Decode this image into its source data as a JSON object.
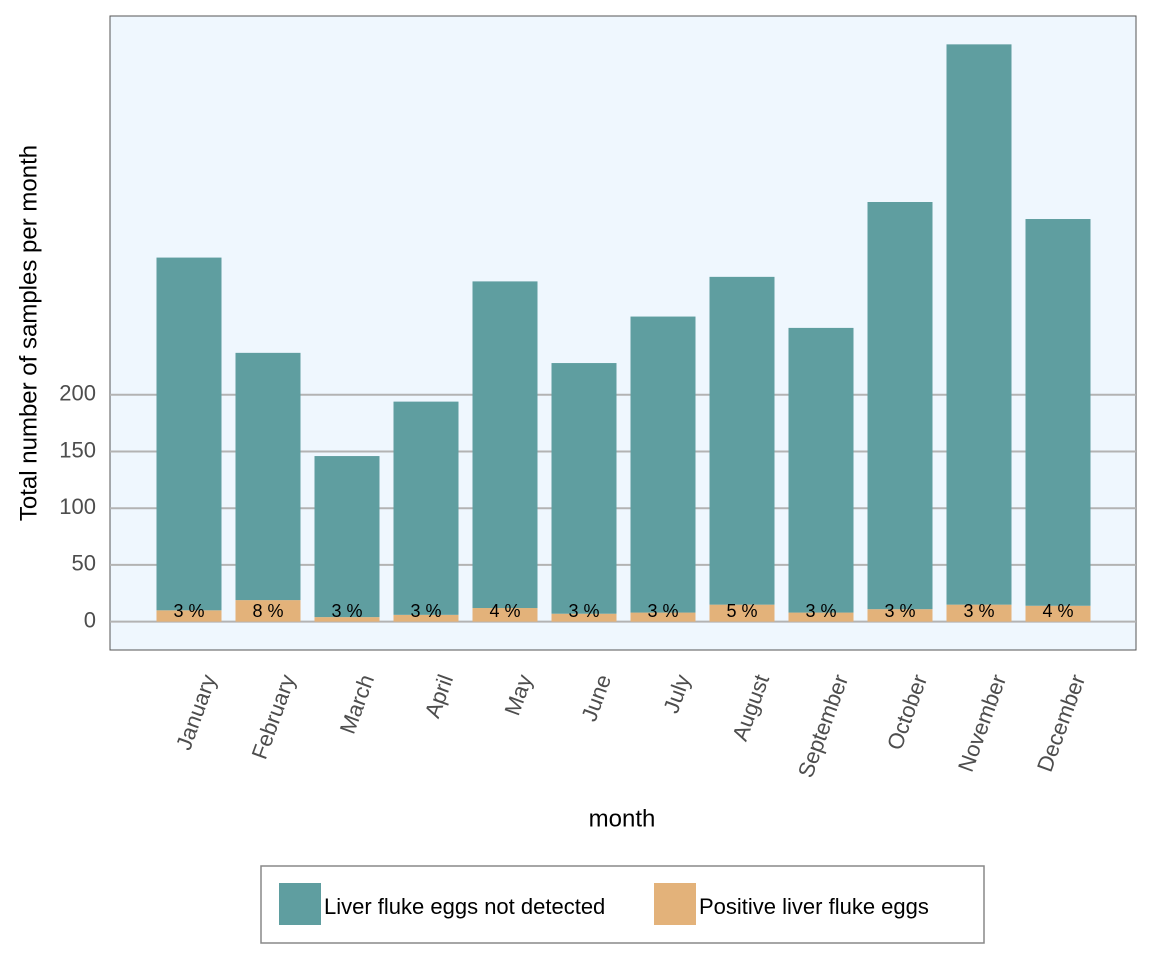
{
  "chart_data": {
    "type": "stacked_bar",
    "x_label": "month",
    "y_label": "Total number of samples per month",
    "categories": [
      "January",
      "February",
      "March",
      "April",
      "May",
      "June",
      "July",
      "August",
      "September",
      "October",
      "November",
      "December"
    ],
    "series": [
      {
        "name": "Liver fluke eggs not detected",
        "color": "#5f9ea0",
        "values": [
          311,
          218,
          142,
          188,
          288,
          221,
          261,
          289,
          251,
          359,
          494,
          341
        ]
      },
      {
        "name": "Positive liver fluke eggs",
        "color": "#e3b27a",
        "values": [
          10,
          19,
          4,
          6,
          12,
          7,
          8,
          15,
          8,
          11,
          15,
          14
        ]
      }
    ],
    "percent_labels": [
      "3 %",
      "8 %",
      "3 %",
      "3 %",
      "4 %",
      "3 %",
      "3 %",
      "5 %",
      "3 %",
      "3 %",
      "3 %",
      "4 %"
    ],
    "ylim": [
      -25,
      534
    ],
    "yticks": [
      0,
      50,
      100,
      150,
      200
    ],
    "grid": true,
    "background": "#eff7fe",
    "legend_position": "bottom"
  }
}
